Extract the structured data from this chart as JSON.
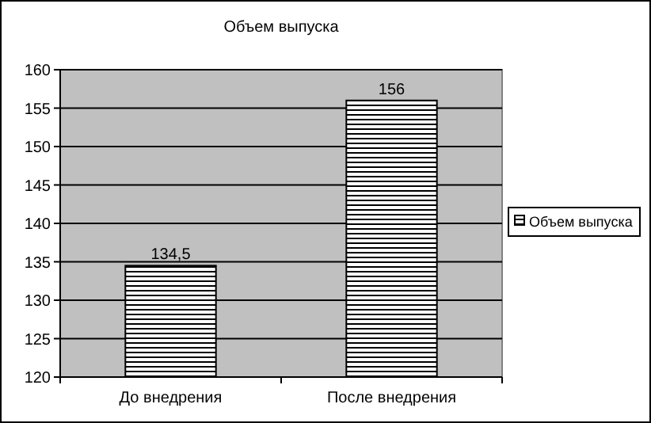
{
  "chart_data": {
    "type": "bar",
    "title": "Объем выпуска",
    "categories": [
      "До внедрения",
      "После внедрения"
    ],
    "series": [
      {
        "name": "Объем выпуска",
        "color": "#000000",
        "values": [
          134.5,
          156
        ],
        "value_labels": [
          "134,5",
          "156"
        ]
      }
    ],
    "ylim": [
      120,
      160
    ],
    "yticks": [
      120,
      125,
      130,
      135,
      140,
      145,
      150,
      155,
      160
    ],
    "grid": "y",
    "legend": "right"
  }
}
